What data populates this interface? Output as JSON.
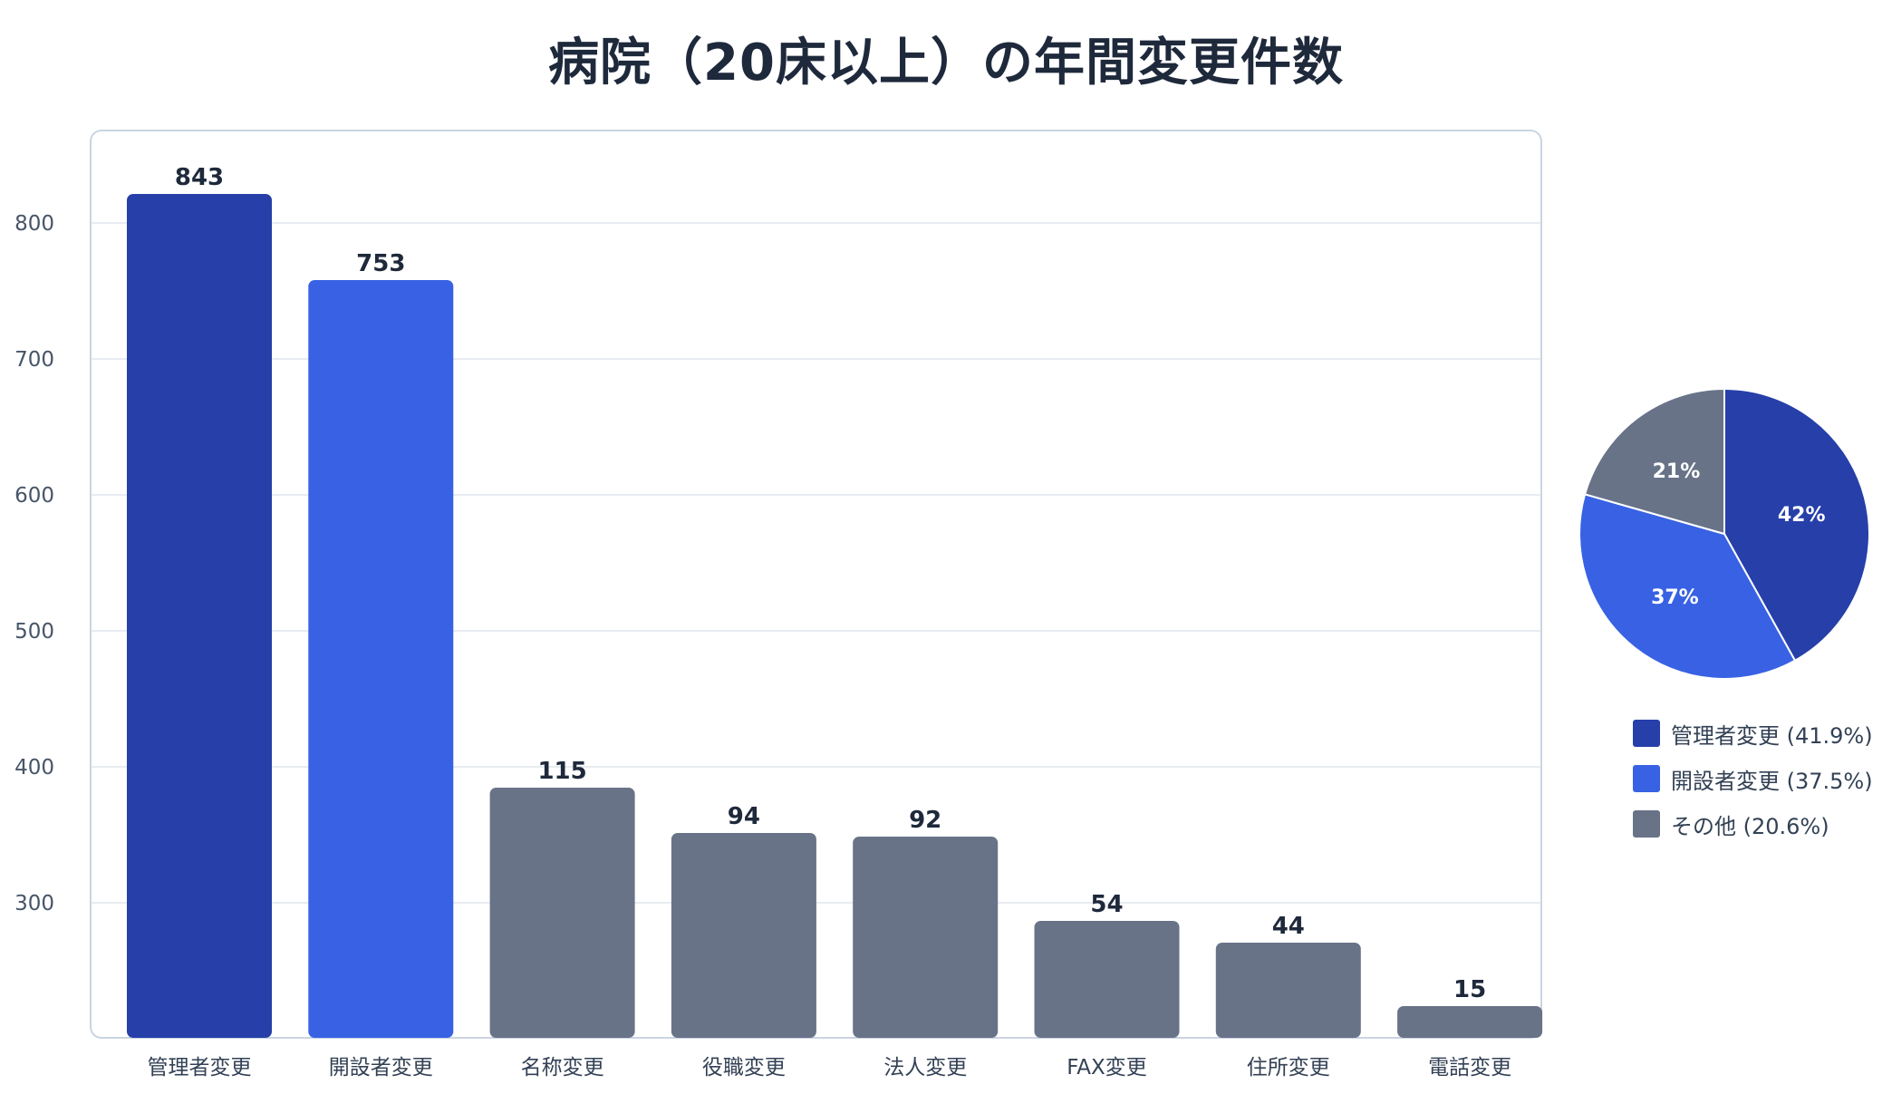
{
  "title": "病院（20床以上）の年間変更件数",
  "colors": {
    "dark_blue": "#263fa9",
    "blue": "#3862e3",
    "gray": "#687388",
    "grid": "#e8ecf1",
    "frame": "#cbd5e1"
  },
  "chart_data": [
    {
      "type": "bar",
      "title": "病院（20床以上）の年間変更件数",
      "categories": [
        "管理者変更",
        "開設者変更",
        "名称変更",
        "役職変更",
        "法人変更",
        "FAX変更",
        "住所変更",
        "電話変更"
      ],
      "values": [
        843,
        753,
        115,
        94,
        92,
        54,
        44,
        15
      ],
      "bar_colors": [
        "#263fa9",
        "#3862e3",
        "#687388",
        "#687388",
        "#687388",
        "#687388",
        "#687388",
        "#687388"
      ],
      "y_ticks": [
        300,
        400,
        500,
        600,
        700,
        800
      ],
      "grid": true,
      "data_labels": true
    },
    {
      "type": "pie",
      "slices": [
        {
          "label": "42%",
          "value": 41.9,
          "color": "#263fa9"
        },
        {
          "label": "37%",
          "value": 37.5,
          "color": "#3862e3"
        },
        {
          "label": "21%",
          "value": 20.6,
          "color": "#687388"
        }
      ],
      "legend": [
        {
          "label": "管理者変更 (41.9%)",
          "color": "#263fa9"
        },
        {
          "label": "開設者変更 (37.5%)",
          "color": "#3862e3"
        },
        {
          "label": "その他 (20.6%)",
          "color": "#687388"
        }
      ],
      "legend_position": "bottom"
    }
  ]
}
